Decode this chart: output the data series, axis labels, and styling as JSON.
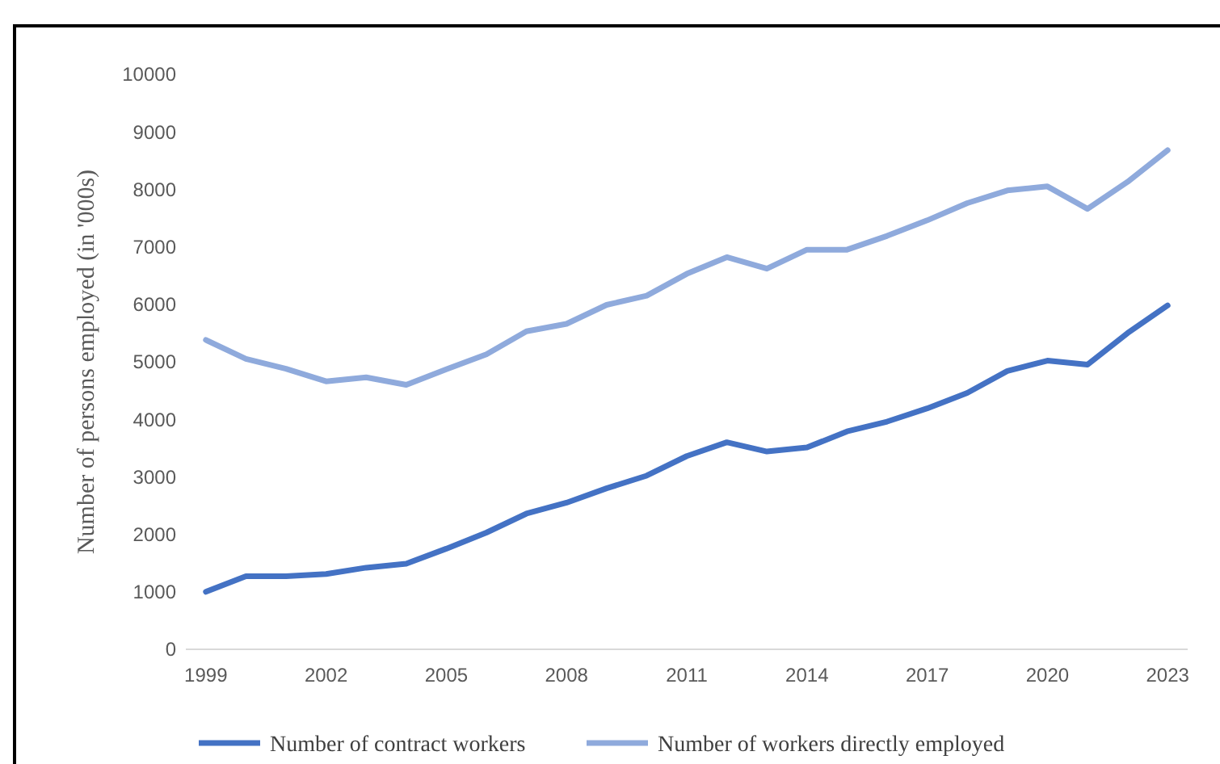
{
  "chart_data": {
    "type": "line",
    "ylabel": "Number of persons employed (in '000s)",
    "categories": [
      "1999",
      null,
      null,
      "2002",
      null,
      null,
      "2005",
      null,
      null,
      "2008",
      null,
      null,
      "2011",
      null,
      null,
      "2014",
      null,
      null,
      "2017",
      null,
      null,
      "2020",
      null,
      null,
      "2023"
    ],
    "series": [
      {
        "name": "Number of contract workers",
        "color": "#4472c4",
        "values": [
          1000,
          1270,
          1270,
          1310,
          1420,
          1490,
          1750,
          2030,
          2360,
          2550,
          2800,
          3020,
          3360,
          3600,
          3440,
          3510,
          3790,
          3960,
          4190,
          4460,
          4840,
          5020,
          4950,
          5500,
          5980
        ]
      },
      {
        "name": "Number of workers directly employed",
        "color": "#8faadc",
        "values": [
          5380,
          5050,
          4880,
          4660,
          4730,
          4600,
          4870,
          5130,
          5530,
          5660,
          5990,
          6150,
          6530,
          6820,
          6620,
          6950,
          6950,
          7190,
          7460,
          7760,
          7980,
          8050,
          7660,
          8130,
          8680
        ]
      }
    ],
    "ylim": [
      0,
      10000
    ],
    "yticks": [
      0,
      1000,
      2000,
      3000,
      4000,
      5000,
      6000,
      7000,
      8000,
      9000,
      10000
    ],
    "grid": false,
    "legend": "bottom",
    "line_style": "solid",
    "marker": "none"
  }
}
